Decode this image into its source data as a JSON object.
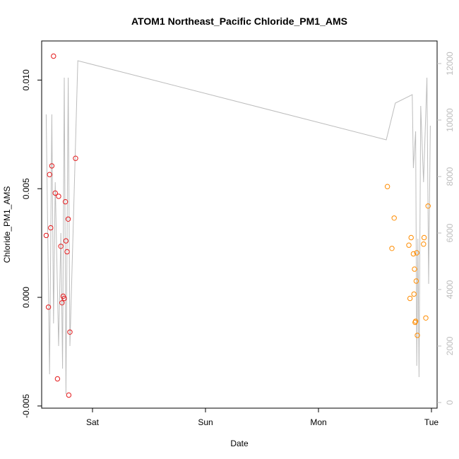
{
  "chart_data": {
    "type": "scatter",
    "title": "ATOM1 Northeast_Pacific Chloride_PM1_AMS",
    "xlabel": "Date",
    "ylabel": "Chloride_PM1_AMS",
    "x_ticks": [
      {
        "label": "Sat",
        "value": 1.0
      },
      {
        "label": "Sun",
        "value": 2.0
      },
      {
        "label": "Mon",
        "value": 3.0
      },
      {
        "label": "Tue",
        "value": 4.0
      }
    ],
    "xlim": [
      0.55,
      4.05
    ],
    "ylim": [
      -0.0051,
      0.0118
    ],
    "y_ticks": [
      {
        "label": "-0.005",
        "value": -0.005
      },
      {
        "label": "0.000",
        "value": 0.0
      },
      {
        "label": "0.005",
        "value": 0.005
      },
      {
        "label": "0.010",
        "value": 0.01
      }
    ],
    "y2lim": [
      -200,
      12800
    ],
    "y2_ticks": [
      {
        "label": "0",
        "value": 0
      },
      {
        "label": "2000",
        "value": 2000
      },
      {
        "label": "4000",
        "value": 4000
      },
      {
        "label": "6000",
        "value": 6000
      },
      {
        "label": "8000",
        "value": 8000
      },
      {
        "label": "10000",
        "value": 10000
      },
      {
        "label": "12000",
        "value": 12000
      }
    ],
    "grid": false,
    "colors": {
      "series_1": "#e41a1c",
      "series_2": "#ff8c00",
      "secondary_line": "#bdbdbd"
    },
    "series": [
      {
        "color_key": "series_1",
        "points": [
          [
            0.59,
            0.00285
          ],
          [
            0.61,
            -0.00045
          ],
          [
            0.62,
            0.00565
          ],
          [
            0.63,
            0.0032
          ],
          [
            0.64,
            0.00605
          ],
          [
            0.655,
            0.0111
          ],
          [
            0.67,
            0.0048
          ],
          [
            0.69,
            -0.00375
          ],
          [
            0.7,
            0.00465
          ],
          [
            0.72,
            0.00235
          ],
          [
            0.73,
            -0.00025
          ],
          [
            0.74,
            5e-05
          ],
          [
            0.75,
            -5e-05
          ],
          [
            0.76,
            0.0044
          ],
          [
            0.765,
            0.0026
          ],
          [
            0.775,
            0.0021
          ],
          [
            0.785,
            0.0036
          ],
          [
            0.79,
            -0.0045
          ],
          [
            0.8,
            -0.0016
          ],
          [
            0.85,
            0.0064
          ]
        ]
      },
      {
        "color_key": "series_2",
        "points": [
          [
            3.61,
            0.0051
          ],
          [
            3.65,
            0.00225
          ],
          [
            3.67,
            0.00365
          ],
          [
            3.8,
            0.0024
          ],
          [
            3.81,
            -5e-05
          ],
          [
            3.82,
            0.00275
          ],
          [
            3.84,
            0.002
          ],
          [
            3.845,
            0.00015
          ],
          [
            3.85,
            0.0013
          ],
          [
            3.855,
            -0.00115
          ],
          [
            3.86,
            -0.0011
          ],
          [
            3.865,
            0.00075
          ],
          [
            3.87,
            0.00205
          ],
          [
            3.875,
            -0.00175
          ],
          [
            3.93,
            0.00245
          ],
          [
            3.935,
            0.00275
          ],
          [
            3.95,
            -0.00095
          ],
          [
            3.97,
            0.0042
          ]
        ]
      }
    ],
    "secondary_line": {
      "axis": "right",
      "points": [
        [
          0.59,
          10200
        ],
        [
          0.62,
          1000
        ],
        [
          0.64,
          10200
        ],
        [
          0.655,
          2800
        ],
        [
          0.67,
          7800
        ],
        [
          0.7,
          2000
        ],
        [
          0.72,
          6000
        ],
        [
          0.735,
          1200
        ],
        [
          0.75,
          11500
        ],
        [
          0.765,
          300
        ],
        [
          0.785,
          11500
        ],
        [
          0.8,
          2000
        ],
        [
          0.87,
          12100
        ],
        [
          3.6,
          9300
        ],
        [
          3.68,
          10600
        ],
        [
          3.83,
          10900
        ],
        [
          3.84,
          8300
        ],
        [
          3.86,
          9600
        ],
        [
          3.87,
          1300
        ],
        [
          3.88,
          5800
        ],
        [
          3.89,
          900
        ],
        [
          3.905,
          10500
        ],
        [
          3.93,
          7800
        ],
        [
          3.96,
          11500
        ],
        [
          3.975,
          4200
        ],
        [
          3.99,
          9800
        ]
      ]
    }
  }
}
